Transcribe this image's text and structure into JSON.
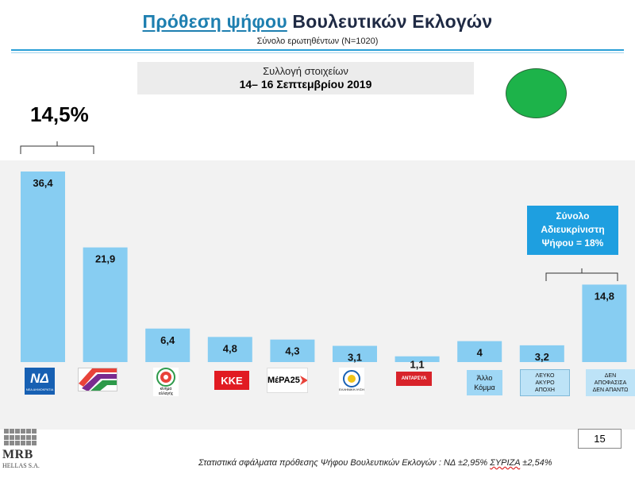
{
  "header": {
    "title_highlight": "Πρόθεση ψήφου",
    "title_rest": "Βουλευτικών Εκλογών",
    "subtitle": "Σύνολο ερωτηθέντων (Ν=1020)"
  },
  "collection": {
    "line1": "Συλλογή στοιχείων",
    "line2": "14– 16 Σεπτεμβρίου 2019"
  },
  "difference_label": "14,5%",
  "summary_box": {
    "line1": "Σύνολο",
    "line2": "Αδιευκρίνιστη",
    "line3": "Ψήφου = 18%"
  },
  "logos": {
    "nd_text": "ΝΔ",
    "nd_small": "ΝΕΑ ΔΗΜΟΚΡΑΤΙΑ",
    "kinal_text": "κίνημα αλλαγής",
    "kke_text": "ΚΚΕ",
    "mera_text": "ΜέΡΑ25",
    "el_text": "ΕΛΛΗΝΙΚΗ ΛΥΣΗ",
    "antarsya_text": "ΑΝΤΑΡΣΥΑ",
    "other_line1": "Άλλο",
    "other_line2": "Κόμμα",
    "blank_line1": "ΛΕΥΚΟ",
    "blank_line2": "ΑΚΥΡΟ",
    "blank_line3": "ΑΠΟΧΗ",
    "undec_line1": "ΔΕΝ",
    "undec_line2": "ΑΠΟΦΑΣΙΣΑ",
    "undec_line3": "ΔΕΝ ΑΠΑΝΤΩ"
  },
  "chart_data": {
    "type": "bar",
    "categories": [
      "ΝΔ",
      "ΣΥΡΙΖΑ",
      "Κίνημα Αλλαγής",
      "ΚΚΕ",
      "ΜέΡΑ25",
      "Ελληνική Λύση",
      "ΑΝΤΑΡΣΥΑ",
      "Άλλο Κόμμα",
      "Λευκό Άκυρο Αποχή",
      "Δεν αποφάσισα Δεν απαντώ"
    ],
    "values": [
      36.4,
      21.9,
      6.4,
      4.8,
      4.3,
      3.1,
      1.1,
      4,
      3.2,
      14.8
    ],
    "value_labels": [
      "36,4",
      "21,9",
      "6,4",
      "4,8",
      "4,3",
      "3,1",
      "1,1",
      "4",
      "3,2",
      "14,8"
    ],
    "bar_color": "#87cdf2",
    "ylim": [
      0,
      36.4
    ],
    "grid": false,
    "legend": "none"
  },
  "page_number": "15",
  "brand": {
    "name": "MRB",
    "sub": "HELLAS S.A."
  },
  "footnote": {
    "text": "Στατιστικά σφάλματα πρόθεσης Ψήφου Βουλευτικών Εκλογών : ΝΔ ±2,95%",
    "syriza_word": "ΣΥΡΙΖΑ",
    "syriza_value": "±2,54%"
  },
  "colors": {
    "title": "#1f2a44",
    "title_highlight": "#1e7fb0",
    "bar": "#87cdf2",
    "summary_box": "#1e9fe0",
    "green_indicator": "#1db34a"
  }
}
